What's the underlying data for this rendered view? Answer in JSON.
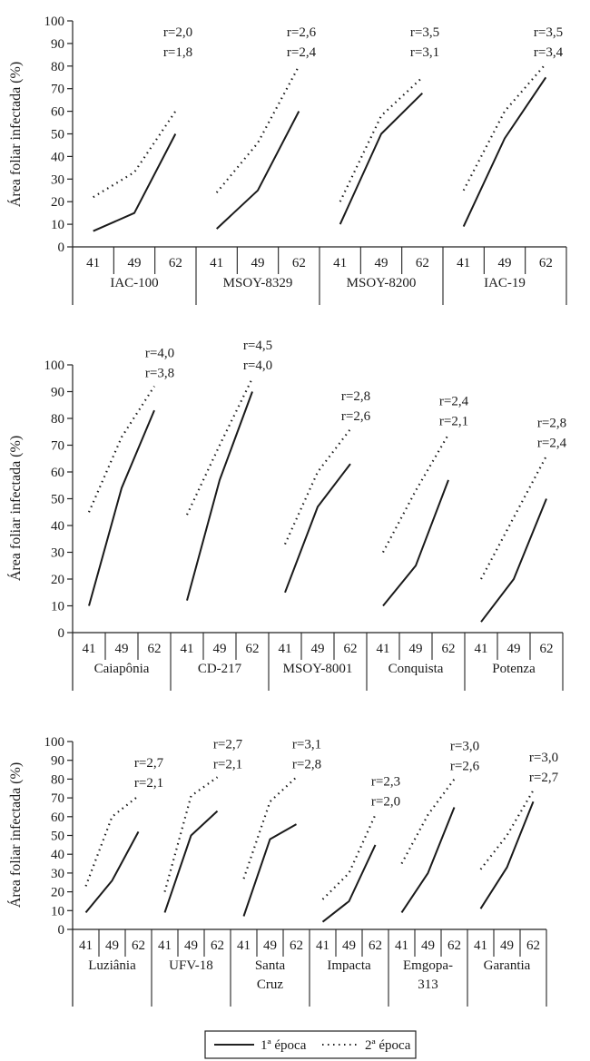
{
  "chart_data": [
    {
      "type": "line",
      "ylabel": "Área foliar infectada (%)",
      "ylim": [
        0,
        100
      ],
      "yticks": [
        0,
        10,
        20,
        30,
        40,
        50,
        60,
        70,
        80,
        90,
        100
      ],
      "x": [
        "41",
        "49",
        "62"
      ],
      "groups": [
        {
          "name": "IAC-100",
          "r": [
            "r=2,0",
            "r=1,8"
          ],
          "series": [
            {
              "name": "1ª época",
              "values": [
                7,
                15,
                50
              ]
            },
            {
              "name": "2ª época",
              "values": [
                22,
                33,
                60
              ]
            }
          ]
        },
        {
          "name": "MSOY-8329",
          "r": [
            "r=2,6",
            "r=2,4"
          ],
          "series": [
            {
              "name": "1ª época",
              "values": [
                8,
                25,
                60
              ]
            },
            {
              "name": "2ª época",
              "values": [
                24,
                46,
                80
              ]
            }
          ]
        },
        {
          "name": "MSOY-8200",
          "r": [
            "r=3,5",
            "r=3,1"
          ],
          "series": [
            {
              "name": "1ª época",
              "values": [
                10,
                50,
                68
              ]
            },
            {
              "name": "2ª época",
              "values": [
                20,
                58,
                75
              ]
            }
          ]
        },
        {
          "name": "IAC-19",
          "r": [
            "r=3,5",
            "r=3,4"
          ],
          "series": [
            {
              "name": "1ª época",
              "values": [
                9,
                48,
                75
              ]
            },
            {
              "name": "2ª época",
              "values": [
                25,
                60,
                81
              ]
            }
          ]
        }
      ]
    },
    {
      "type": "line",
      "ylabel": "Área foliar infectada (%)",
      "ylim": [
        0,
        100
      ],
      "yticks": [
        0,
        10,
        20,
        30,
        40,
        50,
        60,
        70,
        80,
        90,
        100
      ],
      "x": [
        "41",
        "49",
        "62"
      ],
      "groups": [
        {
          "name": "Caiapônia",
          "r": [
            "r=4,0",
            "r=3,8"
          ],
          "series": [
            {
              "name": "1ª época",
              "values": [
                10,
                54,
                83
              ]
            },
            {
              "name": "2ª época",
              "values": [
                45,
                73,
                92
              ]
            }
          ]
        },
        {
          "name": "CD-217",
          "r": [
            "r=4,5",
            "r=4,0"
          ],
          "series": [
            {
              "name": "1ª época",
              "values": [
                12,
                57,
                90
              ]
            },
            {
              "name": "2ª época",
              "values": [
                44,
                70,
                95
              ]
            }
          ]
        },
        {
          "name": "MSOY-8001",
          "r": [
            "r=2,8",
            "r=2,6"
          ],
          "series": [
            {
              "name": "1ª época",
              "values": [
                15,
                47,
                63
              ]
            },
            {
              "name": "2ª época",
              "values": [
                33,
                60,
                76
              ]
            }
          ]
        },
        {
          "name": "Conquista",
          "r": [
            "r=2,4",
            "r=2,1"
          ],
          "series": [
            {
              "name": "1ª época",
              "values": [
                10,
                25,
                57
              ]
            },
            {
              "name": "2ª época",
              "values": [
                30,
                53,
                74
              ]
            }
          ]
        },
        {
          "name": "Potenza",
          "r": [
            "r=2,8",
            "r=2,4"
          ],
          "series": [
            {
              "name": "1ª época",
              "values": [
                4,
                20,
                50
              ]
            },
            {
              "name": "2ª época",
              "values": [
                20,
                43,
                66
              ]
            }
          ]
        }
      ]
    },
    {
      "type": "line",
      "ylabel": "Área foliar infectada (%)",
      "ylim": [
        0,
        100
      ],
      "yticks": [
        0,
        10,
        20,
        30,
        40,
        50,
        60,
        70,
        80,
        90,
        100
      ],
      "x": [
        "41",
        "49",
        "62"
      ],
      "groups": [
        {
          "name": "Luziânia",
          "r": [
            "r=2,7",
            "r=2,1"
          ],
          "series": [
            {
              "name": "1ª época",
              "values": [
                9,
                26,
                52
              ]
            },
            {
              "name": "2ª época",
              "values": [
                23,
                60,
                71
              ]
            }
          ]
        },
        {
          "name": "UFV-18",
          "r": [
            "r=2,7",
            "r=2,1"
          ],
          "series": [
            {
              "name": "1ª época",
              "values": [
                9,
                50,
                63
              ]
            },
            {
              "name": "2ª época",
              "values": [
                20,
                71,
                81
              ]
            }
          ]
        },
        {
          "name": "Santa Cruz",
          "r": [
            "r=3,1",
            "r=2,8"
          ],
          "series": [
            {
              "name": "1ª época",
              "values": [
                7,
                48,
                56
              ]
            },
            {
              "name": "2ª época",
              "values": [
                27,
                68,
                81
              ]
            }
          ]
        },
        {
          "name": "Impacta",
          "r": [
            "r=2,3",
            "r=2,0"
          ],
          "series": [
            {
              "name": "1ª época",
              "values": [
                4,
                15,
                45
              ]
            },
            {
              "name": "2ª época",
              "values": [
                16,
                30,
                61
              ]
            }
          ]
        },
        {
          "name": "Emgopa-313",
          "r": [
            "r=3,0",
            "r=2,6"
          ],
          "series": [
            {
              "name": "1ª época",
              "values": [
                9,
                30,
                65
              ]
            },
            {
              "name": "2ª época",
              "values": [
                35,
                61,
                80
              ]
            }
          ]
        },
        {
          "name": "Garantia",
          "r": [
            "r=3,0",
            "r=2,7"
          ],
          "series": [
            {
              "name": "1ª época",
              "values": [
                11,
                33,
                68
              ]
            },
            {
              "name": "2ª época",
              "values": [
                32,
                50,
                74
              ]
            }
          ]
        }
      ]
    }
  ],
  "legend": {
    "solid": "1ª época",
    "dotted": "2ª época"
  }
}
